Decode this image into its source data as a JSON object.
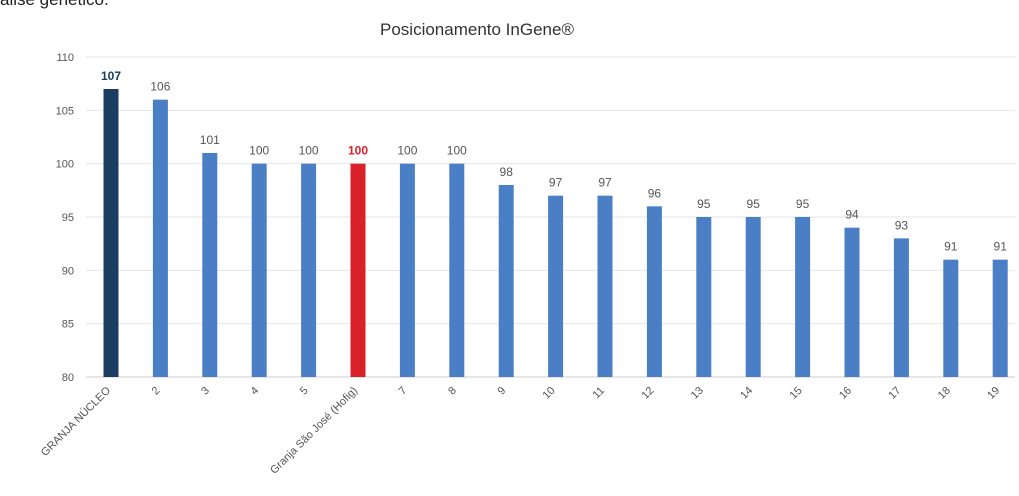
{
  "page": {
    "cropped_text": "álise genético."
  },
  "chart_data": {
    "type": "bar",
    "title": "Posicionamento InGene®",
    "categories": [
      "GRANJA NÚCLEO",
      "2",
      "3",
      "4",
      "5",
      "Granja São José (Hofig)",
      "7",
      "8",
      "9",
      "10",
      "11",
      "12",
      "13",
      "14",
      "15",
      "16",
      "17",
      "18",
      "19"
    ],
    "values": [
      107,
      106,
      101,
      100,
      100,
      100,
      100,
      100,
      98,
      97,
      97,
      96,
      95,
      95,
      95,
      94,
      93,
      91,
      91
    ],
    "ylim": [
      80,
      110
    ],
    "yticks": [
      80,
      85,
      90,
      95,
      100,
      105,
      110
    ],
    "xlabel": "",
    "ylabel": "",
    "grid": true,
    "legend": "none",
    "colors": {
      "default": "#4a7fc6",
      "highlight_nucleo": "#1c3d62",
      "highlight_farm": "#d9212a",
      "grid": "#e6e6e6",
      "axis_text": "#555555"
    },
    "bar_colors": [
      "#1c3d62",
      "#4a7fc6",
      "#4a7fc6",
      "#4a7fc6",
      "#4a7fc6",
      "#d9212a",
      "#4a7fc6",
      "#4a7fc6",
      "#4a7fc6",
      "#4a7fc6",
      "#4a7fc6",
      "#4a7fc6",
      "#4a7fc6",
      "#4a7fc6",
      "#4a7fc6",
      "#4a7fc6",
      "#4a7fc6",
      "#4a7fc6",
      "#4a7fc6"
    ],
    "label_colors": [
      "#1c3d62",
      "#555555",
      "#555555",
      "#555555",
      "#555555",
      "#d9212a",
      "#555555",
      "#555555",
      "#555555",
      "#555555",
      "#555555",
      "#555555",
      "#555555",
      "#555555",
      "#555555",
      "#555555",
      "#555555",
      "#555555",
      "#555555"
    ],
    "bold_labels": [
      true,
      false,
      false,
      false,
      false,
      true,
      false,
      false,
      false,
      false,
      false,
      false,
      false,
      false,
      false,
      false,
      false,
      false,
      false
    ]
  }
}
